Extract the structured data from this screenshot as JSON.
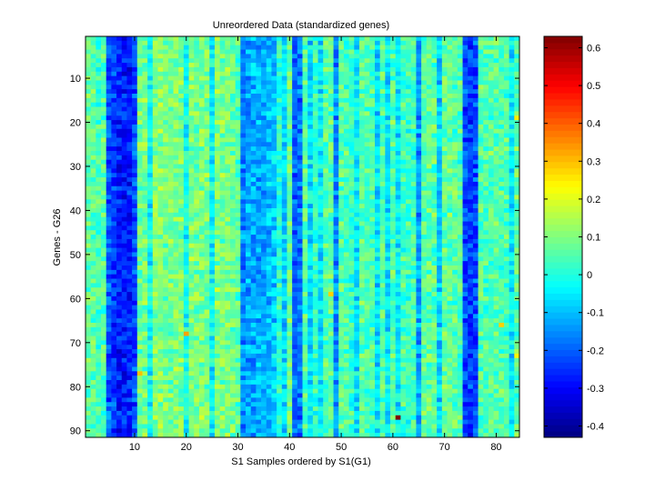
{
  "chart_data": {
    "type": "heatmap",
    "title": "Unreordered Data (standardized genes)",
    "xlabel": "S1 Samples ordered by S1(G1)",
    "ylabel": "Genes - G26",
    "n_samples": 84,
    "n_genes": 91,
    "xlim": [
      0.5,
      84.5
    ],
    "ylim": [
      91.5,
      0.5
    ],
    "x_ticks": [
      10,
      20,
      30,
      40,
      50,
      60,
      70,
      80
    ],
    "y_ticks": [
      10,
      20,
      30,
      40,
      50,
      60,
      70,
      80,
      90
    ],
    "colorbar": {
      "colormap": "jet",
      "range": [
        -0.43,
        0.63
      ],
      "ticks": [
        -0.4,
        -0.3,
        -0.2,
        -0.1,
        0,
        0.1,
        0.2,
        0.3,
        0.4,
        0.5,
        0.6
      ],
      "tick_labels": [
        "-0.4",
        "-0.3",
        "-0.2",
        "-0.1",
        "0",
        "0.1",
        "0.2",
        "0.3",
        "0.4",
        "0.5",
        "0.6"
      ]
    },
    "column_profile": {
      "description_values_by_sample_range": [
        {
          "samples": [
            1,
            4
          ],
          "mean": 0.05
        },
        {
          "samples": [
            5,
            10
          ],
          "mean": -0.25
        },
        {
          "samples": [
            11,
            30
          ],
          "mean": 0.07
        },
        {
          "samples": [
            31,
            37
          ],
          "mean": -0.12
        },
        {
          "samples": [
            38,
            63
          ],
          "mean": 0.02
        },
        {
          "samples": [
            64,
            73
          ],
          "mean": 0.04
        },
        {
          "samples": [
            74,
            76
          ],
          "mean": -0.22
        },
        {
          "samples": [
            77,
            84
          ],
          "mean": 0.03
        }
      ],
      "dark_samples": {
        "5": -0.2,
        "6": -0.24,
        "7": -0.27,
        "8": -0.28,
        "9": -0.27,
        "10": -0.22,
        "13": -0.03,
        "20": -0.02,
        "25": -0.03,
        "31": -0.15,
        "32": -0.13,
        "33": -0.12,
        "35": -0.12,
        "36": -0.1,
        "37": -0.08,
        "39": -0.08,
        "41": -0.2,
        "42": -0.18,
        "44": -0.06,
        "46": -0.05,
        "49": -0.15,
        "53": -0.05,
        "57": -0.06,
        "59": -0.05,
        "61": -0.05,
        "65": -0.14,
        "69": -0.08,
        "75": -0.24,
        "76": -0.22,
        "83": -0.05
      },
      "bright_samples": {
        "1": 0.07,
        "2": 0.06,
        "3": 0.04,
        "4": 0.05,
        "11": 0.08,
        "12": 0.09,
        "14": 0.1,
        "15": 0.1,
        "16": 0.09,
        "17": 0.09,
        "18": 0.1,
        "19": 0.09,
        "21": 0.1,
        "22": 0.09,
        "23": 0.1,
        "24": 0.09,
        "26": 0.1,
        "27": 0.09,
        "28": 0.1,
        "29": 0.08,
        "30": 0.06,
        "40": 0.08,
        "43": 0.05,
        "47": 0.06,
        "48": 0.06,
        "50": 0.06,
        "51": 0.05,
        "54": 0.06,
        "55": 0.05,
        "56": 0.05,
        "58": 0.05,
        "60": 0.05,
        "62": 0.04,
        "63": 0.03,
        "66": 0.06,
        "67": 0.07,
        "68": 0.06,
        "70": 0.07,
        "71": 0.07,
        "72": 0.06,
        "73": 0.05,
        "77": 0.05,
        "78": 0.05,
        "79": 0.06,
        "80": 0.06,
        "81": 0.05,
        "82": 0.05,
        "84": 0.06
      }
    },
    "notable_cells": [
      {
        "sample": 61,
        "gene": 87,
        "value": 0.63
      },
      {
        "sample": 20,
        "gene": 68,
        "value": 0.33
      },
      {
        "sample": 11,
        "gene": 77,
        "value": 0.3
      },
      {
        "sample": 81,
        "gene": 66,
        "value": 0.28
      },
      {
        "sample": 48,
        "gene": 59,
        "value": 0.28
      },
      {
        "sample": 84,
        "gene": 19,
        "value": 0.25
      },
      {
        "sample": 84,
        "gene": 73,
        "value": 0.24
      }
    ]
  }
}
